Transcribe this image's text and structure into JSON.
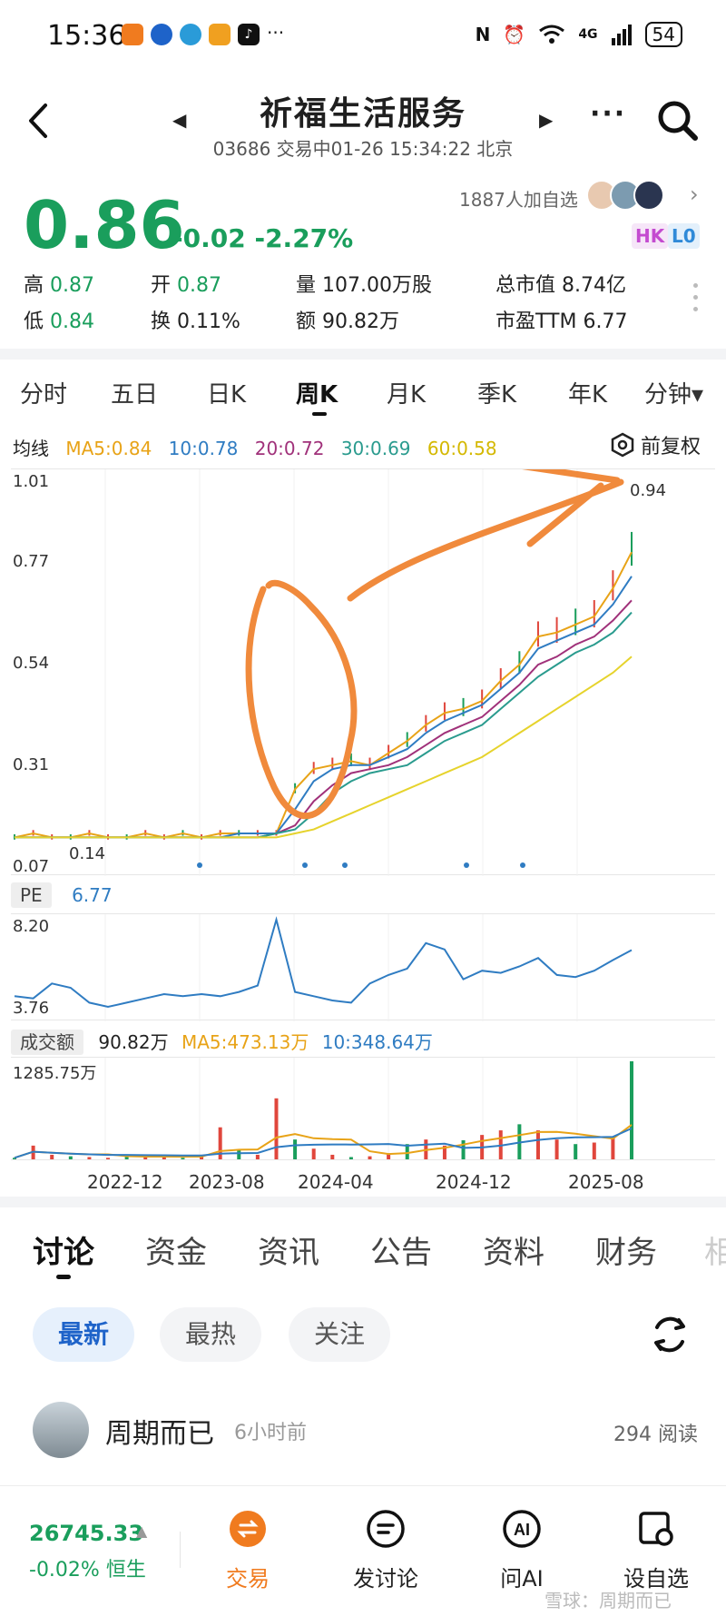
{
  "status_bar": {
    "time": "15:36",
    "more": "···",
    "network": "4G",
    "battery": "54"
  },
  "header": {
    "title": "祈福生活服务",
    "subtitle": "03686 交易中01-26 15:34:22 北京",
    "more": "···"
  },
  "quote": {
    "price": "0.86",
    "change": "-0.02 -2.27%",
    "followers": "1887人加自选",
    "tags": [
      "HK",
      "L0"
    ],
    "stats": {
      "high_k": "高",
      "high_v": "0.87",
      "low_k": "低",
      "low_v": "0.84",
      "open_k": "开",
      "open_v": "0.87",
      "turnover_k": "换",
      "turnover_v": "0.11%",
      "volume_k": "量",
      "volume_v": "107.00万股",
      "amount_k": "额",
      "amount_v": "90.82万",
      "mktcap_k": "总市值",
      "mktcap_v": "8.74亿",
      "pe_k": "市盈TTM",
      "pe_v": "6.77"
    }
  },
  "kline_tabs": [
    "分时",
    "五日",
    "日K",
    "周K",
    "月K",
    "季K",
    "年K",
    "分钟▾"
  ],
  "ma": {
    "label": "均线",
    "ma5": "MA5:0.84",
    "ma10": "10:0.78",
    "ma20": "20:0.72",
    "ma30": "30:0.69",
    "ma60": "60:0.58",
    "adjust": "前复权"
  },
  "colors": {
    "down_green": "#1a9e5c",
    "up_red": "#e0463c",
    "ma5": "#e8a317",
    "ma10": "#2f7cc2",
    "ma20": "#a0317a",
    "ma30": "#2a9b8e",
    "ma60": "#e6d32c",
    "annotation": "#f08a3c",
    "accent_blue": "#1e63c9",
    "nav_active": "#f07b1f"
  },
  "chart_data": [
    {
      "type": "line",
      "title": "周K",
      "y_ticks": [
        "1.01",
        "0.77",
        "0.54",
        "0.31",
        "0.07"
      ],
      "ylim": [
        0.07,
        1.01
      ],
      "x_ticks": [
        "2022-12",
        "2023-08",
        "2024-04",
        "2024-12",
        "2025-08"
      ],
      "annotations": [
        "0.94",
        "0.14"
      ],
      "series": [
        {
          "name": "MA5",
          "values": [
            0.13,
            0.14,
            0.13,
            0.13,
            0.14,
            0.13,
            0.13,
            0.14,
            0.13,
            0.14,
            0.13,
            0.14,
            0.14,
            0.14,
            0.14,
            0.25,
            0.3,
            0.31,
            0.32,
            0.31,
            0.34,
            0.37,
            0.41,
            0.44,
            0.45,
            0.47,
            0.52,
            0.56,
            0.63,
            0.64,
            0.66,
            0.68,
            0.75,
            0.84
          ]
        },
        {
          "name": "10",
          "values": [
            0.13,
            0.13,
            0.13,
            0.13,
            0.13,
            0.13,
            0.13,
            0.13,
            0.13,
            0.13,
            0.13,
            0.13,
            0.14,
            0.14,
            0.14,
            0.2,
            0.27,
            0.3,
            0.31,
            0.31,
            0.33,
            0.35,
            0.39,
            0.42,
            0.44,
            0.46,
            0.5,
            0.54,
            0.6,
            0.62,
            0.64,
            0.66,
            0.71,
            0.78
          ]
        },
        {
          "name": "20",
          "values": [
            0.13,
            0.13,
            0.13,
            0.13,
            0.13,
            0.13,
            0.13,
            0.13,
            0.13,
            0.13,
            0.13,
            0.13,
            0.13,
            0.13,
            0.14,
            0.16,
            0.22,
            0.26,
            0.29,
            0.3,
            0.31,
            0.33,
            0.36,
            0.39,
            0.41,
            0.43,
            0.47,
            0.51,
            0.56,
            0.58,
            0.61,
            0.63,
            0.67,
            0.72
          ]
        },
        {
          "name": "30",
          "values": [
            0.13,
            0.13,
            0.13,
            0.13,
            0.13,
            0.13,
            0.13,
            0.13,
            0.13,
            0.13,
            0.13,
            0.13,
            0.13,
            0.13,
            0.14,
            0.15,
            0.19,
            0.24,
            0.27,
            0.29,
            0.3,
            0.31,
            0.34,
            0.37,
            0.39,
            0.41,
            0.45,
            0.49,
            0.53,
            0.56,
            0.59,
            0.61,
            0.64,
            0.69
          ]
        },
        {
          "name": "60",
          "values": [
            0.13,
            0.13,
            0.13,
            0.13,
            0.13,
            0.13,
            0.13,
            0.13,
            0.13,
            0.13,
            0.13,
            0.13,
            0.13,
            0.13,
            0.13,
            0.14,
            0.15,
            0.17,
            0.19,
            0.21,
            0.23,
            0.25,
            0.27,
            0.29,
            0.31,
            0.33,
            0.36,
            0.39,
            0.42,
            0.45,
            0.48,
            0.51,
            0.54,
            0.58
          ]
        }
      ]
    },
    {
      "type": "line",
      "title": "PE",
      "current": "6.77",
      "y_ticks": [
        "8.20",
        "3.76"
      ],
      "ylim": [
        3.76,
        8.2
      ],
      "series": [
        {
          "name": "PE",
          "values": [
            4.6,
            4.5,
            5.2,
            5.0,
            4.3,
            4.1,
            4.3,
            4.5,
            4.7,
            4.6,
            4.7,
            4.6,
            4.8,
            5.1,
            8.2,
            4.8,
            4.6,
            4.4,
            4.3,
            5.2,
            5.6,
            5.9,
            7.1,
            6.8,
            5.4,
            5.8,
            5.7,
            6.0,
            6.4,
            5.6,
            5.5,
            5.8,
            6.3,
            6.77
          ]
        }
      ]
    },
    {
      "type": "bar",
      "title": "成交额",
      "current": "90.82万",
      "ma5": "MA5:473.13万",
      "ma10": "10:348.64万",
      "y_ticks": [
        "1285.75万"
      ],
      "ylim": [
        0,
        1285.75
      ],
      "values": [
        20,
        180,
        60,
        40,
        30,
        20,
        60,
        30,
        40,
        20,
        30,
        420,
        120,
        60,
        800,
        260,
        140,
        60,
        30,
        40,
        80,
        200,
        260,
        180,
        250,
        320,
        380,
        460,
        380,
        260,
        200,
        220,
        300,
        1285.75
      ]
    }
  ],
  "info_tabs": [
    "讨论",
    "资金",
    "资讯",
    "公告",
    "资料",
    "财务",
    "相"
  ],
  "filters": [
    "最新",
    "最热",
    "关注"
  ],
  "post": {
    "author": "周期而已",
    "time": "6小时前",
    "reads": "294 阅读"
  },
  "bottom_nav": {
    "index_value": "26745.33",
    "index_change": "-0.02% 恒生",
    "items": [
      "交易",
      "发讨论",
      "问AI",
      "设自选"
    ],
    "watermark": "雪球：周期而已"
  }
}
